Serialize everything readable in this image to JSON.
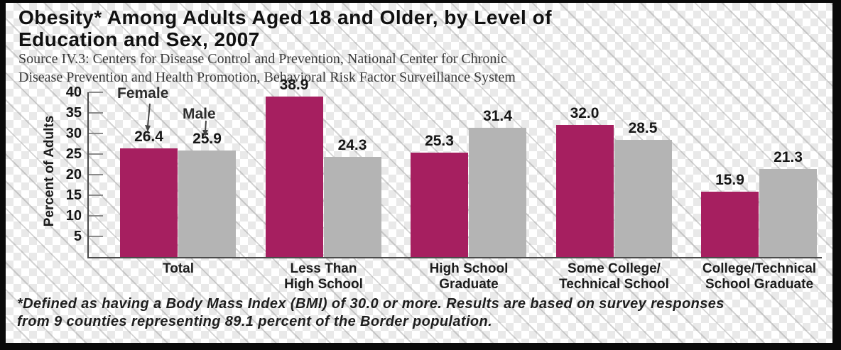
{
  "header": {
    "title_line1": "Obesity* Among Adults Aged 18 and Older, by Level of",
    "title_line2": "Education and Sex, 2007",
    "source_line1": "Source IV.3: Centers for Disease Control and Prevention, National Center for Chronic",
    "source_line2": "Disease Prevention and Health Promotion, Behavioral Risk Factor Surveillance System"
  },
  "annotations": {
    "female_label": "Female",
    "male_label": "Male"
  },
  "footnote": {
    "line1": "*Defined as having a Body Mass Index (BMI) of 30.0 or more. Results are based on survey responses",
    "line2": "from 9 counties representing 89.1 percent of the Border population."
  },
  "colors": {
    "female_bar": "#A61F60",
    "male_bar": "#B4B4B4",
    "axis": "#4b4b4b",
    "frame_border": "#0a0a0a"
  },
  "chart_data": {
    "type": "bar",
    "title": "Obesity* Among Adults Aged 18 and Older, by Level of Education and Sex, 2007",
    "source": "Source IV.3: Centers for Disease Control and Prevention, National Center for Chronic Disease Prevention and Health Promotion, Behavioral Risk Factor Surveillance System",
    "ylabel": "Percent of Adults",
    "xlabel": "",
    "ylim": [
      0,
      40
    ],
    "yticks": [
      5,
      10,
      15,
      20,
      25,
      30,
      35,
      40
    ],
    "grid": false,
    "legend_position": "arrow-annotations-top-left",
    "value_labels": true,
    "categories": [
      "Total",
      "Less Than High School",
      "High School Graduate",
      "Some College/Technical School",
      "College/Technical School Graduate"
    ],
    "category_label_lines": [
      [
        "Total"
      ],
      [
        "Less Than",
        "High School"
      ],
      [
        "High School",
        "Graduate"
      ],
      [
        "Some College/",
        "Technical School"
      ],
      [
        "College/Technical",
        "School Graduate"
      ]
    ],
    "series": [
      {
        "name": "Female",
        "color": "#A61F60",
        "values": [
          26.4,
          38.9,
          25.3,
          32.0,
          15.9
        ]
      },
      {
        "name": "Male",
        "color": "#B4B4B4",
        "values": [
          25.9,
          24.3,
          31.4,
          28.5,
          21.3
        ]
      }
    ]
  }
}
